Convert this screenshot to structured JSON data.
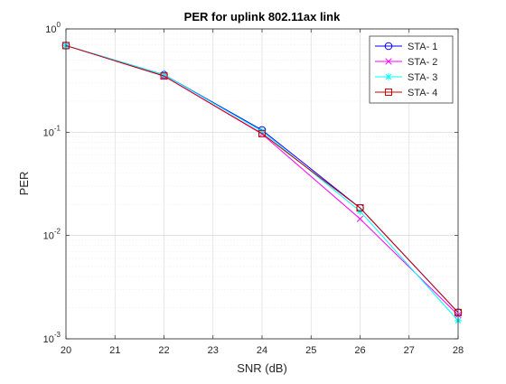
{
  "chart_data": {
    "type": "line",
    "title": "PER for uplink 802.11ax link",
    "xlabel": "SNR (dB)",
    "ylabel": "PER",
    "y_scale": "log",
    "xlim": [
      20,
      28
    ],
    "ylim": [
      0.001,
      1
    ],
    "x_ticks": [
      20,
      21,
      22,
      23,
      24,
      25,
      26,
      27,
      28
    ],
    "y_ticks": [
      {
        "value": 1,
        "base": "10",
        "exp": "0"
      },
      {
        "value": 0.1,
        "base": "10",
        "exp": "-1"
      },
      {
        "value": 0.01,
        "base": "10",
        "exp": "-2"
      },
      {
        "value": 0.001,
        "base": "10",
        "exp": "-3"
      }
    ],
    "grid": true,
    "minor_grid": true,
    "legend_position": "top-right",
    "x": [
      20,
      22,
      24,
      26,
      28
    ],
    "series": [
      {
        "name": "STA- 1",
        "color": "#0000ff",
        "marker": "circle",
        "values": [
          0.69,
          0.36,
          0.105,
          0.0185,
          0.0018
        ]
      },
      {
        "name": "STA- 2",
        "color": "#ff00ff",
        "marker": "x",
        "values": [
          0.69,
          0.35,
          0.096,
          0.0145,
          0.0017
        ]
      },
      {
        "name": "STA- 3",
        "color": "#00ffff",
        "marker": "asterisk",
        "values": [
          0.69,
          0.36,
          0.102,
          0.0172,
          0.0015
        ]
      },
      {
        "name": "STA- 4",
        "color": "#cc0000",
        "marker": "square",
        "values": [
          0.69,
          0.35,
          0.097,
          0.0185,
          0.0018
        ]
      }
    ]
  }
}
